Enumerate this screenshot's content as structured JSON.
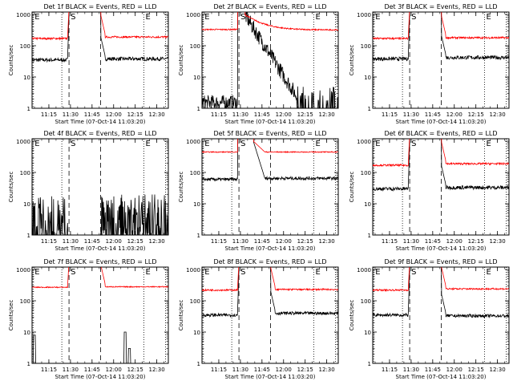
{
  "figure": {
    "ylabel": "Counts/sec",
    "xlabel": "Start Time (07-Oct-14 11:03:20)",
    "xticks": [
      "11:15",
      "11:30",
      "11:45",
      "12:00",
      "12:15",
      "12:30"
    ],
    "yticks": [
      "1",
      "10",
      "100",
      "1000"
    ],
    "colors": {
      "events": "#000000",
      "lld": "#ff0000",
      "axes": "#000000"
    }
  },
  "chart_data": [
    {
      "type": "line",
      "title": "Det 1f BLACK = Events, RED = LLD",
      "x_range": [
        "11:03:20",
        "12:38:00"
      ],
      "ylim": [
        1,
        1000
      ],
      "yscale": "log",
      "markers": [
        {
          "label": "E",
          "time": "11:04",
          "style": "dotted"
        },
        {
          "label": "",
          "time": "11:24",
          "style": "dotted"
        },
        {
          "label": "S",
          "time": "11:29",
          "style": "dashed"
        },
        {
          "label": "",
          "time": "11:51",
          "style": "dashed"
        },
        {
          "label": "E",
          "time": "12:21",
          "style": "dotted"
        },
        {
          "label": "",
          "time": "12:36",
          "style": "dotted"
        }
      ],
      "series": [
        {
          "name": "Events",
          "color": "#000000",
          "profile": "saturated",
          "values_before": 35,
          "values_after": 38,
          "noise": 0.12
        },
        {
          "name": "LLD",
          "color": "#ff0000",
          "profile": "saturated",
          "values_before": 170,
          "values_after": 190,
          "noise": 0.06
        }
      ]
    },
    {
      "type": "line",
      "title": "Det 2f BLACK = Events, RED = LLD",
      "x_range": [
        "11:03:20",
        "12:38:00"
      ],
      "ylim": [
        1,
        1000
      ],
      "yscale": "log",
      "markers": [
        {
          "label": "E",
          "time": "11:04",
          "style": "dotted"
        },
        {
          "label": "",
          "time": "11:24",
          "style": "dotted"
        },
        {
          "label": "S",
          "time": "11:29",
          "style": "dashed"
        },
        {
          "label": "",
          "time": "11:51",
          "style": "dashed"
        },
        {
          "label": "E",
          "time": "12:21",
          "style": "dotted"
        },
        {
          "label": "",
          "time": "12:36",
          "style": "dotted"
        }
      ],
      "series": [
        {
          "name": "Events",
          "color": "#000000",
          "profile": "decay",
          "values_before": 1.5,
          "values_after": 1.8,
          "peak": 1000,
          "noise": 0.5
        },
        {
          "name": "LLD",
          "color": "#ff0000",
          "profile": "decay",
          "values_before": 330,
          "values_after": 320,
          "peak": 1000,
          "noise": 0.04
        }
      ]
    },
    {
      "type": "line",
      "title": "Det 3f BLACK = Events, RED = LLD",
      "x_range": [
        "11:03:20",
        "12:38:00"
      ],
      "ylim": [
        1,
        1000
      ],
      "yscale": "log",
      "markers": [
        {
          "label": "E",
          "time": "11:04",
          "style": "dotted"
        },
        {
          "label": "",
          "time": "11:24",
          "style": "dotted"
        },
        {
          "label": "S",
          "time": "11:29",
          "style": "dashed"
        },
        {
          "label": "",
          "time": "11:51",
          "style": "dashed"
        },
        {
          "label": "E",
          "time": "12:21",
          "style": "dotted"
        },
        {
          "label": "",
          "time": "12:36",
          "style": "dotted"
        }
      ],
      "series": [
        {
          "name": "Events",
          "color": "#000000",
          "profile": "saturated",
          "values_before": 38,
          "values_after": 42,
          "noise": 0.12
        },
        {
          "name": "LLD",
          "color": "#ff0000",
          "profile": "saturated",
          "values_before": 170,
          "values_after": 180,
          "noise": 0.06
        }
      ]
    },
    {
      "type": "line",
      "title": "Det 4f BLACK = Events, RED = LLD",
      "x_range": [
        "11:03:20",
        "12:38:00"
      ],
      "ylim": [
        1,
        1000
      ],
      "yscale": "log",
      "markers": [
        {
          "label": "E",
          "time": "11:04",
          "style": "dotted"
        },
        {
          "label": "",
          "time": "11:24",
          "style": "dotted"
        },
        {
          "label": "S",
          "time": "11:29",
          "style": "dashed"
        },
        {
          "label": "",
          "time": "11:51",
          "style": "dashed"
        },
        {
          "label": "E",
          "time": "12:21",
          "style": "dotted"
        },
        {
          "label": "",
          "time": "12:36",
          "style": "dotted"
        }
      ],
      "series": [
        {
          "name": "Events",
          "color": "#000000",
          "profile": "sparse",
          "values_before": 2,
          "values_after": 3,
          "noise": 1.0
        }
      ]
    },
    {
      "type": "line",
      "title": "Det 5f BLACK = Events, RED = LLD",
      "x_range": [
        "11:03:20",
        "12:38:00"
      ],
      "ylim": [
        1,
        1000
      ],
      "yscale": "log",
      "markers": [
        {
          "label": "E",
          "time": "11:04",
          "style": "dotted"
        },
        {
          "label": "",
          "time": "11:24",
          "style": "dotted"
        },
        {
          "label": "S",
          "time": "11:29",
          "style": "dashed"
        },
        {
          "label": "",
          "time": "11:51",
          "style": "dashed"
        },
        {
          "label": "E",
          "time": "12:21",
          "style": "dotted"
        },
        {
          "label": "",
          "time": "12:36",
          "style": "dotted"
        }
      ],
      "series": [
        {
          "name": "Events",
          "color": "#000000",
          "profile": "bump",
          "values_before": 60,
          "values_after": 65,
          "peak": 1000,
          "noise": 0.1
        },
        {
          "name": "LLD",
          "color": "#ff0000",
          "profile": "bump",
          "values_before": 450,
          "values_after": 450,
          "peak": 1000,
          "noise": 0.03
        }
      ]
    },
    {
      "type": "line",
      "title": "Det 6f BLACK = Events, RED = LLD",
      "x_range": [
        "11:03:20",
        "12:38:00"
      ],
      "ylim": [
        1,
        1000
      ],
      "yscale": "log",
      "markers": [
        {
          "label": "E",
          "time": "11:04",
          "style": "dotted"
        },
        {
          "label": "",
          "time": "11:24",
          "style": "dotted"
        },
        {
          "label": "S",
          "time": "11:29",
          "style": "dashed"
        },
        {
          "label": "",
          "time": "11:51",
          "style": "dashed"
        },
        {
          "label": "E",
          "time": "12:21",
          "style": "dotted"
        },
        {
          "label": "",
          "time": "12:36",
          "style": "dotted"
        }
      ],
      "series": [
        {
          "name": "Events",
          "color": "#000000",
          "profile": "saturated",
          "values_before": 30,
          "values_after": 33,
          "noise": 0.12
        },
        {
          "name": "LLD",
          "color": "#ff0000",
          "profile": "saturated",
          "values_before": 170,
          "values_after": 190,
          "noise": 0.06
        }
      ]
    },
    {
      "type": "line",
      "title": "Det 7f BLACK = Events, RED = LLD",
      "x_range": [
        "11:03:20",
        "12:38:00"
      ],
      "ylim": [
        1,
        1000
      ],
      "yscale": "log",
      "markers": [
        {
          "label": "E",
          "time": "11:04",
          "style": "dotted"
        },
        {
          "label": "",
          "time": "11:24",
          "style": "dotted"
        },
        {
          "label": "S",
          "time": "11:29",
          "style": "dashed"
        },
        {
          "label": "",
          "time": "11:51",
          "style": "dashed"
        },
        {
          "label": "E",
          "time": "12:21",
          "style": "dotted"
        },
        {
          "label": "",
          "time": "12:36",
          "style": "dotted"
        }
      ],
      "series": [
        {
          "name": "Events",
          "color": "#000000",
          "profile": "glitch",
          "values_before": 1,
          "values_after": 1,
          "noise": 0.0
        },
        {
          "name": "LLD",
          "color": "#ff0000",
          "profile": "saturated",
          "values_before": 270,
          "values_after": 280,
          "noise": 0.03
        }
      ]
    },
    {
      "type": "line",
      "title": "Det 8f BLACK = Events, RED = LLD",
      "x_range": [
        "11:03:20",
        "12:38:00"
      ],
      "ylim": [
        1,
        1000
      ],
      "yscale": "log",
      "markers": [
        {
          "label": "E",
          "time": "11:04",
          "style": "dotted"
        },
        {
          "label": "",
          "time": "11:24",
          "style": "dotted"
        },
        {
          "label": "S",
          "time": "11:29",
          "style": "dashed"
        },
        {
          "label": "",
          "time": "11:51",
          "style": "dashed"
        },
        {
          "label": "E",
          "time": "12:21",
          "style": "dotted"
        },
        {
          "label": "",
          "time": "12:36",
          "style": "dotted"
        }
      ],
      "series": [
        {
          "name": "Events",
          "color": "#000000",
          "profile": "saturated",
          "values_before": 35,
          "values_after": 40,
          "noise": 0.1
        },
        {
          "name": "LLD",
          "color": "#ff0000",
          "profile": "saturated",
          "values_before": 220,
          "values_after": 230,
          "noise": 0.05
        }
      ]
    },
    {
      "type": "line",
      "title": "Det 9f BLACK = Events, RED = LLD",
      "x_range": [
        "11:03:20",
        "12:38:00"
      ],
      "ylim": [
        1,
        1000
      ],
      "yscale": "log",
      "markers": [
        {
          "label": "E",
          "time": "11:04",
          "style": "dotted"
        },
        {
          "label": "",
          "time": "11:24",
          "style": "dotted"
        },
        {
          "label": "S",
          "time": "11:29",
          "style": "dashed"
        },
        {
          "label": "",
          "time": "11:51",
          "style": "dashed"
        },
        {
          "label": "E",
          "time": "12:21",
          "style": "dotted"
        },
        {
          "label": "",
          "time": "12:36",
          "style": "dotted"
        }
      ],
      "series": [
        {
          "name": "Events",
          "color": "#000000",
          "profile": "saturated",
          "values_before": 35,
          "values_after": 33,
          "noise": 0.1
        },
        {
          "name": "LLD",
          "color": "#ff0000",
          "profile": "saturated",
          "values_before": 220,
          "values_after": 240,
          "noise": 0.05
        }
      ]
    }
  ]
}
